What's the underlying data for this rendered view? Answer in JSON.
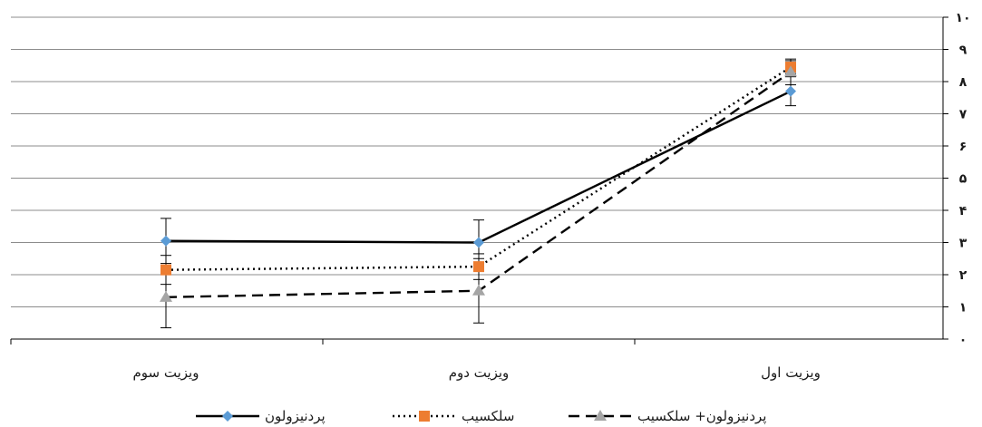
{
  "chart_data": {
    "type": "line",
    "categories": [
      "ویزیت سوم",
      "ویزیت دوم",
      "ویزیت اول"
    ],
    "ylim": [
      0,
      10
    ],
    "yticks": [
      {
        "value": 0,
        "label": "۰"
      },
      {
        "value": 1,
        "label": "۱"
      },
      {
        "value": 2,
        "label": "۲"
      },
      {
        "value": 3,
        "label": "۳"
      },
      {
        "value": 4,
        "label": "۴"
      },
      {
        "value": 5,
        "label": "۵"
      },
      {
        "value": 6,
        "label": "۶"
      },
      {
        "value": 7,
        "label": "۷"
      },
      {
        "value": 8,
        "label": "۸"
      },
      {
        "value": 9,
        "label": "۹"
      },
      {
        "value": 10,
        "label": "۱۰"
      }
    ],
    "y_axis_position": "right",
    "grid": true,
    "legend_position": "bottom",
    "series": [
      {
        "name": "پردنیزولون",
        "values": [
          3.05,
          3.0,
          7.7
        ],
        "error": [
          0.7,
          0.7,
          0.45
        ],
        "color": "#000000",
        "line_style": "solid",
        "marker": "diamond",
        "marker_color": "#5b9bd5"
      },
      {
        "name": "سلکسیب",
        "values": [
          2.15,
          2.25,
          8.45
        ],
        "error": [
          0.45,
          0.4,
          0.2
        ],
        "color": "#000000",
        "line_style": "dotted",
        "marker": "square",
        "marker_color": "#ed7d31"
      },
      {
        "name": "پردنیزولون+ سلکسیب",
        "values": [
          1.3,
          1.5,
          8.3
        ],
        "error": [
          0.95,
          1.0,
          0.4
        ],
        "color": "#000000",
        "line_style": "dashed",
        "marker": "triangle",
        "marker_color": "#a5a5a5"
      }
    ]
  }
}
